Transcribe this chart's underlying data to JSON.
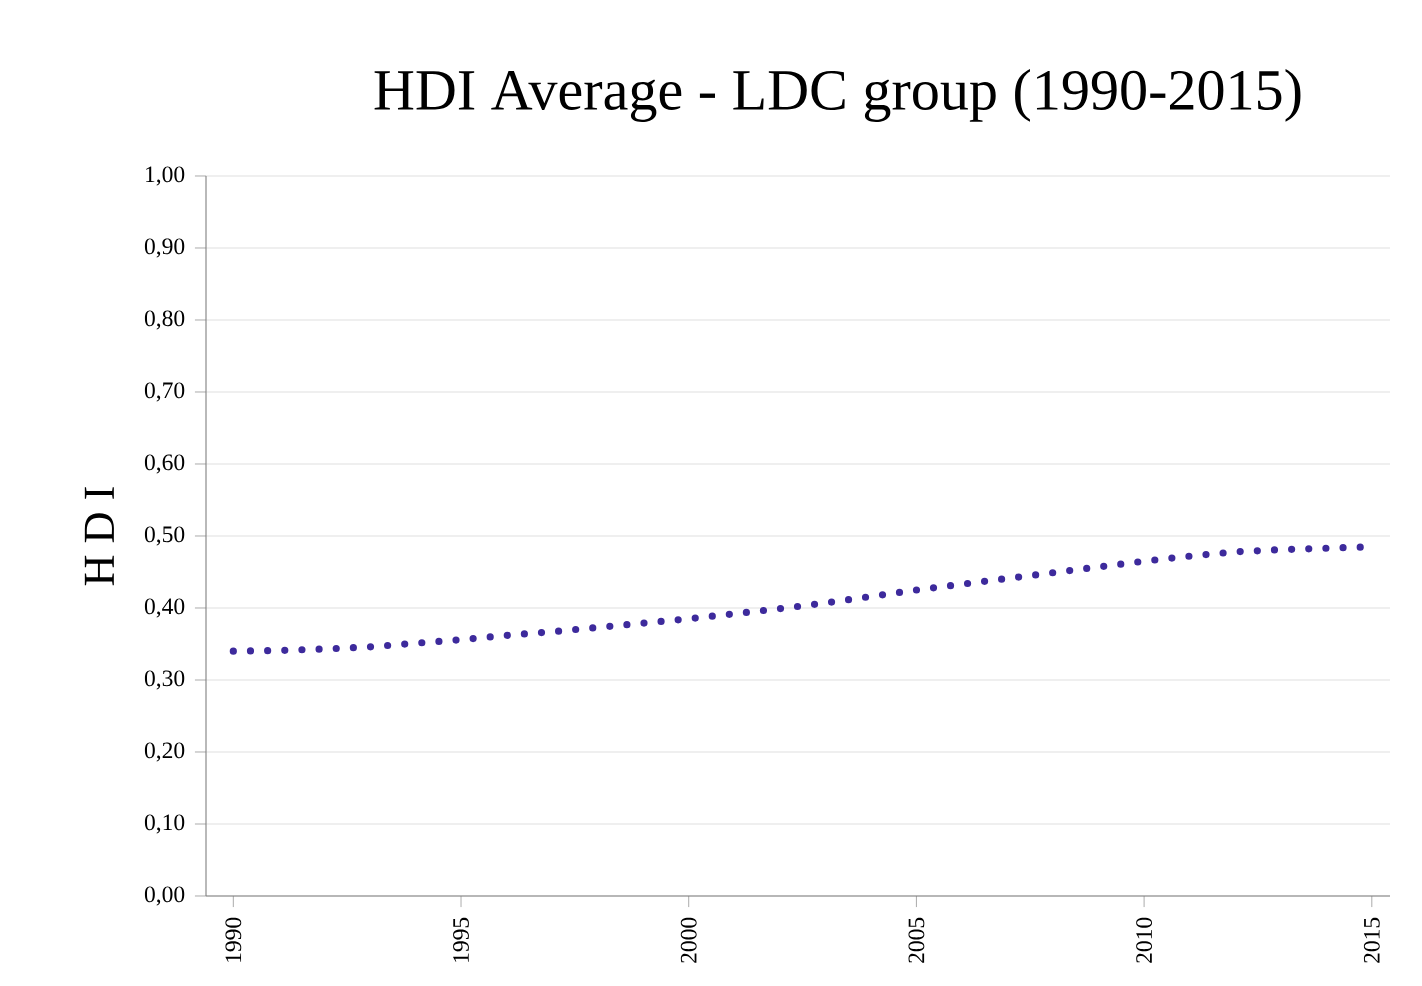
{
  "chart_data": {
    "type": "line",
    "title": "HDI Average - LDC group (1990-2015)",
    "ylabel": "H D I",
    "x": [
      1990,
      1991,
      1992,
      1993,
      1994,
      1995,
      1996,
      1997,
      1998,
      1999,
      2000,
      2001,
      2002,
      2003,
      2004,
      2005,
      2006,
      2007,
      2008,
      2009,
      2010,
      2011,
      2012,
      2013,
      2014,
      2015
    ],
    "series": [
      {
        "color": "#3d2a9c",
        "values": [
          0.34,
          0.341,
          0.343,
          0.346,
          0.351,
          0.356,
          0.362,
          0.367,
          0.373,
          0.379,
          0.385,
          0.392,
          0.399,
          0.407,
          0.416,
          0.425,
          0.433,
          0.441,
          0.449,
          0.457,
          0.465,
          0.472,
          0.478,
          0.481,
          0.483,
          0.485
        ]
      }
    ],
    "line_style": "dotted",
    "marker": "none",
    "grid": "y",
    "xlim": [
      1989.4,
      2015.4
    ],
    "xticks": [
      1990,
      1995,
      2000,
      2005,
      2010,
      2015
    ],
    "ylim": [
      0,
      1
    ],
    "yticks": [
      {
        "value": 0,
        "label": "0,00"
      },
      {
        "value": 0.1,
        "label": "0,10"
      },
      {
        "value": 0.2,
        "label": "0,20"
      },
      {
        "value": 0.3,
        "label": "0,30"
      },
      {
        "value": 0.4,
        "label": "0,40"
      },
      {
        "value": 0.5,
        "label": "0,50"
      },
      {
        "value": 0.6,
        "label": "0,60"
      },
      {
        "value": 0.7,
        "label": "0,70"
      },
      {
        "value": 0.8,
        "label": "0,80"
      },
      {
        "value": 0.9,
        "label": "0,90"
      },
      {
        "value": 1,
        "label": "1,00"
      }
    ]
  }
}
